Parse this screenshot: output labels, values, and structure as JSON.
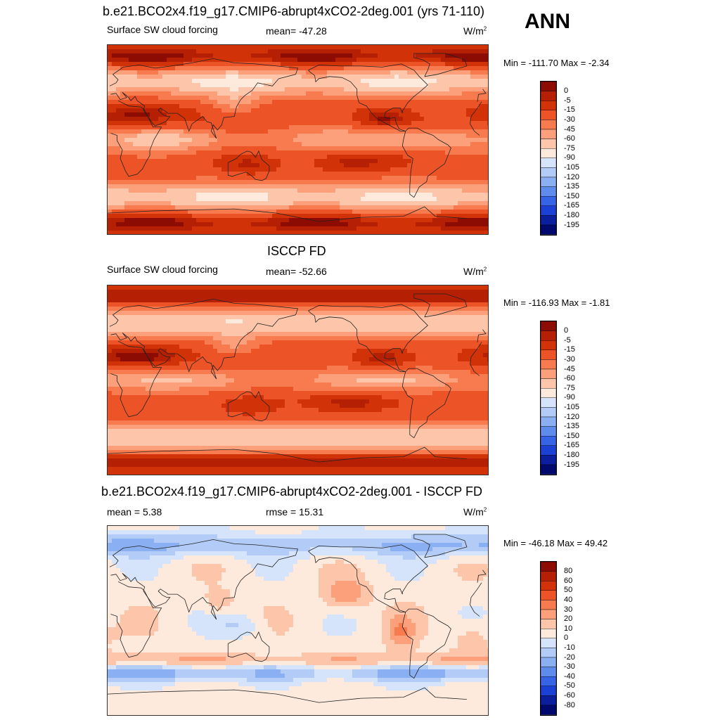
{
  "season": "ANN",
  "panels": [
    {
      "title": "b.e21.BCO2x4.f19_g17.CMIP6-abrupt4xCO2-2deg.001 (yrs 71-110)",
      "left_label": "Surface SW cloud forcing",
      "center_label": "mean= -47.28",
      "units": "W/m",
      "units_sup": "2",
      "minmax": "Min = -111.70 Max =  -2.34",
      "scale": "abs",
      "field": "model",
      "levels": [
        "0",
        "-5",
        "-15",
        "-30",
        "-45",
        "-60",
        "-75",
        "-90",
        "-105",
        "-120",
        "-135",
        "-150",
        "-165",
        "-180",
        "-195"
      ]
    },
    {
      "title": "ISCCP FD",
      "left_label": "Surface SW cloud forcing",
      "center_label": "mean= -52.66",
      "units": "W/m",
      "units_sup": "2",
      "minmax": "Min = -116.93 Max =  -1.81",
      "scale": "abs",
      "field": "obs",
      "levels": [
        "0",
        "-5",
        "-15",
        "-30",
        "-45",
        "-60",
        "-75",
        "-90",
        "-105",
        "-120",
        "-135",
        "-150",
        "-165",
        "-180",
        "-195"
      ]
    },
    {
      "title": "b.e21.BCO2x4.f19_g17.CMIP6-abrupt4xCO2-2deg.001 - ISCCP FD",
      "left_label": "mean =   5.38",
      "center_label": "rmse =  15.31",
      "units": "W/m",
      "units_sup": "2",
      "minmax": "Min = -46.18 Max =  49.42",
      "scale": "diff",
      "field": "diff",
      "levels": [
        "80",
        "60",
        "50",
        "40",
        "30",
        "20",
        "10",
        "0",
        "-10",
        "-20",
        "-30",
        "-40",
        "-50",
        "-60",
        "-80"
      ]
    }
  ],
  "colors": {
    "abs": [
      "#8c0c04",
      "#b52005",
      "#d23208",
      "#ec5327",
      "#f87a4f",
      "#fca07c",
      "#fdc6ab",
      "#feeadd",
      "#d5e4fb",
      "#b2ccf7",
      "#8aaff3",
      "#5d8ced",
      "#3565e6",
      "#1a40d4",
      "#0a1e9e",
      "#000a6e"
    ],
    "diff": [
      "#8c0c04",
      "#b52005",
      "#d23208",
      "#ec5327",
      "#f87a4f",
      "#fca07c",
      "#fdc6ab",
      "#feeadd",
      "#d5e4fb",
      "#b2ccf7",
      "#8aaff3",
      "#5d8ced",
      "#3565e6",
      "#1a40d4",
      "#0a1e9e",
      "#000a6e"
    ]
  }
}
